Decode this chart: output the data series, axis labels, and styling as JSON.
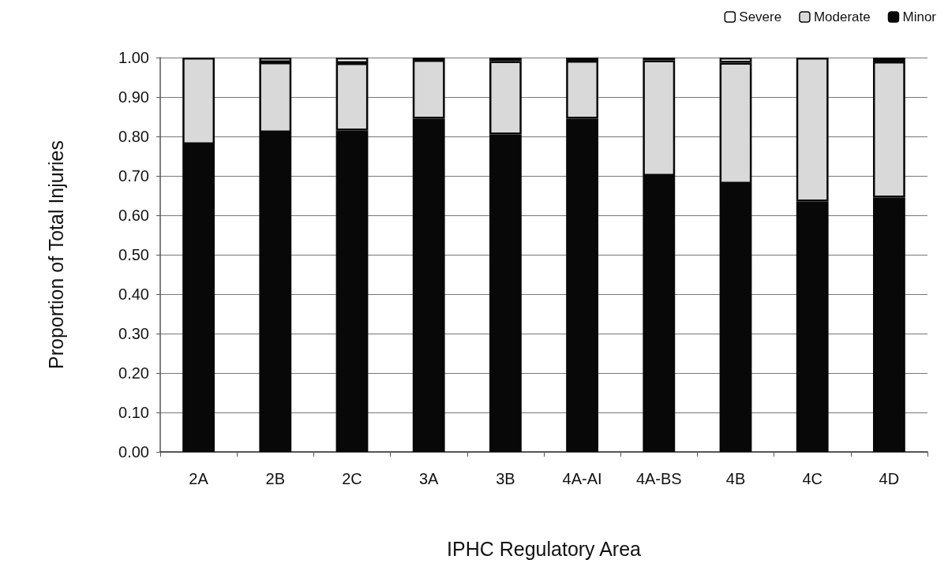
{
  "chart_data": {
    "type": "bar",
    "stacked": true,
    "xlabel": "IPHC Regulatory Area",
    "ylabel": "Proportion of Total Injuries",
    "categories": [
      "2A",
      "2B",
      "2C",
      "3A",
      "3B",
      "4A-AI",
      "4A-BS",
      "4B",
      "4C",
      "4D"
    ],
    "series": [
      {
        "name": "Minor",
        "color": "#080808",
        "values": [
          0.78,
          0.81,
          0.815,
          0.845,
          0.805,
          0.845,
          0.7,
          0.68,
          0.635,
          0.645
        ]
      },
      {
        "name": "Moderate",
        "color": "#d9d9d9",
        "values": [
          0.22,
          0.178,
          0.171,
          0.149,
          0.186,
          0.147,
          0.293,
          0.307,
          0.365,
          0.345
        ]
      },
      {
        "name": "Severe",
        "color": "#ffffff",
        "values": [
          0,
          0.012,
          0.014,
          0.006,
          0.009,
          0.008,
          0.007,
          0.013,
          0,
          0.01
        ]
      }
    ],
    "ylim": [
      0,
      1
    ],
    "yticks": [
      {
        "value": 0,
        "label": "0.00"
      },
      {
        "value": 0.1,
        "label": "0.10"
      },
      {
        "value": 0.2,
        "label": "0.20"
      },
      {
        "value": 0.3,
        "label": "0.30"
      },
      {
        "value": 0.4,
        "label": "0.40"
      },
      {
        "value": 0.5,
        "label": "0.50"
      },
      {
        "value": 0.6,
        "label": "0.60"
      },
      {
        "value": 0.7,
        "label": "0.70"
      },
      {
        "value": 0.8,
        "label": "0.80"
      },
      {
        "value": 0.9,
        "label": "0.90"
      },
      {
        "value": 1,
        "label": "1.00"
      }
    ],
    "grid": "y",
    "legend": "top right"
  }
}
